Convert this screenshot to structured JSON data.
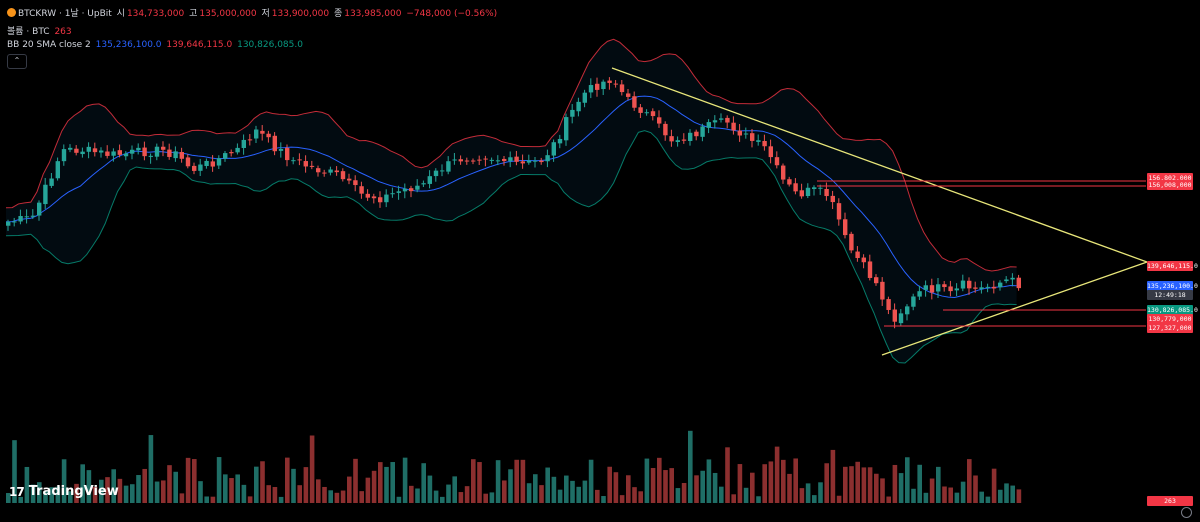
{
  "header": {
    "symbol": "BTCKRW · 1날 · UpBit",
    "open_label": "시",
    "open": "134,733,000",
    "high_label": "고",
    "high": "135,000,000",
    "low_label": "저",
    "low": "133,900,000",
    "close_label": "종",
    "close": "133,985,000",
    "change": "−748,000 (−0.56%)",
    "volume_label": "볼륨 · BTC",
    "volume": "263",
    "bb_label": "BB 20 SMA close 2",
    "bb_basis": "135,236,100.0",
    "bb_upper": "139,646,115.0",
    "bb_lower": "130,826,085.0",
    "collapse": "⌃"
  },
  "price_tags": [
    {
      "text": "156,802,000",
      "bg": "#f23645"
    },
    {
      "text": "156,008,000",
      "bg": "#f23645"
    },
    {
      "text": "139,646,115.0",
      "bg": "#f23645"
    },
    {
      "text": "135,236,100.0",
      "bg": "#2962ff"
    },
    {
      "text": "12:49:18",
      "bg": "#363a45"
    },
    {
      "text": "130,826,085.0",
      "bg": "#089981"
    },
    {
      "text": "130,779,000",
      "bg": "#f23645"
    },
    {
      "text": "127,327,000",
      "bg": "#f23645"
    },
    {
      "text": "263",
      "bg": "#f23645"
    }
  ],
  "branding": {
    "mark": "17",
    "name": "TradingView"
  },
  "colors": {
    "up": "#26a69a",
    "down": "#ef5350",
    "bb_upper": "#f23645",
    "bb_basis": "#2962ff",
    "bb_lower": "#089981",
    "trendline": "#e8e67a",
    "hline": "#f23645"
  },
  "chart_data": {
    "type": "candlestick",
    "symbol": "BTCKRW",
    "interval": "1날",
    "exchange": "UpBit",
    "indicators": [
      "BB 20 SMA close 2",
      "볼륨"
    ],
    "horizontal_levels": [
      156802000,
      156008000,
      130779000,
      127327000
    ],
    "last": {
      "open": 134733000,
      "high": 135000000,
      "low": 133900000,
      "close": 133985000,
      "volume": 263
    }
  }
}
